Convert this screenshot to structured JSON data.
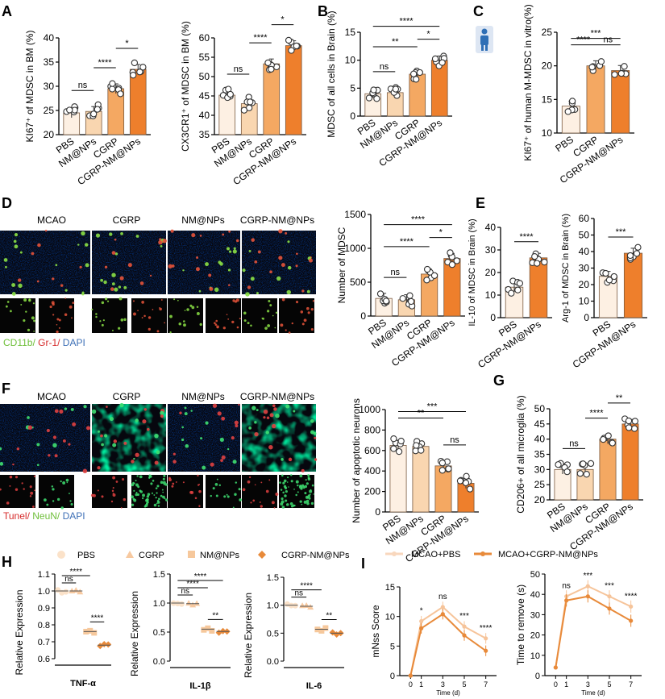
{
  "colors": {
    "pbs": "#fdf0e3",
    "nm": "#f9d6b0",
    "cgrp": "#f4a862",
    "cgrpnm": "#ee7f2c",
    "mcao_line": "#f6c49a",
    "cgrp_line": "#e88a3a"
  },
  "panels": {
    "A": "A",
    "B": "B",
    "C": "C",
    "D": "D",
    "E": "E",
    "F": "F",
    "G": "G",
    "H": "H",
    "I": "I"
  },
  "groups4": [
    "PBS",
    "NM@NPs",
    "CGRP",
    "CGRP-NM@NPs"
  ],
  "groups3": [
    "PBS",
    "CGRP",
    "CGRP-NM@NPs"
  ],
  "groups2": [
    "PBS",
    "CGRP-NM@NPs"
  ],
  "imageD": {
    "cols": [
      "MCAO",
      "CGRP",
      "NM@NPs",
      "CGRP-NM@NPs"
    ],
    "legend1": "CD11b/",
    "legend2": " Gr-1/",
    "legend3": " DAPI"
  },
  "imageF": {
    "cols": [
      "MCAO",
      "CGRP",
      "NM@NPs",
      "CGRP-NM@NPs"
    ],
    "legend1": "Tunel/",
    "legend2": " NeuN/",
    "legend3": " DAPI"
  },
  "chart_data": [
    {
      "id": "A1",
      "type": "bar",
      "ylabel": "KI67⁺ of MDSC in BM (%)",
      "ylim": [
        20,
        40
      ],
      "ticks": [
        20,
        25,
        30,
        35,
        40
      ],
      "categories": [
        "PBS",
        "NM@NPs",
        "CGRP",
        "CGRP-NM@NPs"
      ],
      "values": [
        24.5,
        24.8,
        29.5,
        33.5
      ],
      "sig": [
        {
          "a": 0,
          "b": 1,
          "t": "ns"
        },
        {
          "a": 1,
          "b": 2,
          "t": "****"
        },
        {
          "a": 2,
          "b": 3,
          "t": "*"
        }
      ]
    },
    {
      "id": "A2",
      "type": "bar",
      "ylabel": "CX3CR1⁺ of MDSC in BM (%)",
      "ylim": [
        35,
        60
      ],
      "ticks": [
        35,
        40,
        45,
        50,
        55,
        60
      ],
      "categories": [
        "PBS",
        "NM@NPs",
        "CGRP",
        "CGRP-NM@NPs"
      ],
      "values": [
        45.2,
        43.0,
        53.3,
        58.0
      ],
      "sig": [
        {
          "a": 0,
          "b": 1,
          "t": "ns"
        },
        {
          "a": 1,
          "b": 2,
          "t": "****"
        },
        {
          "a": 2,
          "b": 3,
          "t": "*"
        }
      ]
    },
    {
      "id": "B",
      "type": "bar",
      "ylabel": "MDSC of all cells in Brain (%)",
      "ylim": [
        0,
        15
      ],
      "ticks": [
        0,
        5,
        10,
        15
      ],
      "categories": [
        "PBS",
        "NM@NPs",
        "CGRP",
        "CGRP-NM@NPs"
      ],
      "values": [
        4.0,
        4.2,
        7.5,
        10.0
      ],
      "sig": [
        {
          "a": 0,
          "b": 3,
          "t": "****"
        },
        {
          "a": 0,
          "b": 2,
          "t": "**"
        },
        {
          "a": 0,
          "b": 1,
          "t": "ns"
        },
        {
          "a": 2,
          "b": 3,
          "t": "*"
        }
      ]
    },
    {
      "id": "C",
      "type": "bar",
      "ylabel": "KI67⁺ of human M-MDSC in vitro(%)",
      "ylim": [
        10,
        25
      ],
      "ticks": [
        10,
        15,
        20,
        25
      ],
      "categories": [
        "PBS",
        "CGRP",
        "CGRP-NM@NPs"
      ],
      "values": [
        14.0,
        20.0,
        19.3
      ],
      "sig": [
        {
          "a": 0,
          "b": 2,
          "t": "***"
        },
        {
          "a": 0,
          "b": 1,
          "t": "****"
        },
        {
          "a": 1,
          "b": 2,
          "t": "ns"
        }
      ]
    },
    {
      "id": "D",
      "type": "bar",
      "ylabel": "Number of MDSC",
      "ylim": [
        0,
        1500
      ],
      "ticks": [
        0,
        500,
        1000,
        1500
      ],
      "categories": [
        "PBS",
        "NM@NPs",
        "CGRP",
        "CGRP-NM@NPs"
      ],
      "values": [
        260,
        240,
        620,
        850
      ],
      "sig": [
        {
          "a": 0,
          "b": 3,
          "t": "****"
        },
        {
          "a": 2,
          "b": 3,
          "t": "*"
        },
        {
          "a": 0,
          "b": 2,
          "t": "****"
        },
        {
          "a": 0,
          "b": 1,
          "t": "ns"
        }
      ]
    },
    {
      "id": "E1",
      "type": "bar",
      "ylabel": "IL-10 of MDSC in Brain (%)",
      "ylim": [
        0,
        40
      ],
      "ticks": [
        0,
        10,
        20,
        30,
        40
      ],
      "categories": [
        "PBS",
        "CGRP-NM@NPs"
      ],
      "values": [
        13.5,
        26.5
      ],
      "sig": [
        {
          "a": 0,
          "b": 1,
          "t": "****"
        }
      ]
    },
    {
      "id": "E2",
      "type": "bar",
      "ylabel": "Arg-1 of MDSC in Brain (%)",
      "ylim": [
        0,
        60
      ],
      "ticks": [
        0,
        10,
        20,
        30,
        40,
        50,
        60
      ],
      "categories": [
        "PBS",
        "CGRP-NM@NPs"
      ],
      "values": [
        25.0,
        39.0
      ],
      "sig": [
        {
          "a": 0,
          "b": 1,
          "t": "***"
        }
      ]
    },
    {
      "id": "F",
      "type": "bar",
      "ylabel": "Number of apoptotic neurons",
      "ylim": [
        0,
        1000
      ],
      "ticks": [
        0,
        200,
        400,
        600,
        800,
        1000
      ],
      "categories": [
        "PBS",
        "NM@NPs",
        "CGRP",
        "CGRP-NM@NPs"
      ],
      "values": [
        650,
        640,
        450,
        280
      ],
      "sig": [
        {
          "a": 0,
          "b": 3,
          "t": "***"
        },
        {
          "a": 0,
          "b": 2,
          "t": "**"
        },
        {
          "a": 2,
          "b": 3,
          "t": "ns"
        }
      ]
    },
    {
      "id": "G",
      "type": "bar",
      "ylabel": "CD206+ of all microglia (%)",
      "ylim": [
        20,
        50
      ],
      "ticks": [
        20,
        25,
        30,
        35,
        40,
        45,
        50
      ],
      "categories": [
        "PBS",
        "NM@NPs",
        "CGRP",
        "CGRP-NM@NPs"
      ],
      "values": [
        30.0,
        30.0,
        40.0,
        45.0
      ],
      "sig": [
        {
          "a": 0,
          "b": 1,
          "t": "ns"
        },
        {
          "a": 1,
          "b": 2,
          "t": "****"
        },
        {
          "a": 2,
          "b": 3,
          "t": "**"
        }
      ]
    },
    {
      "id": "H1",
      "type": "scatter",
      "xlabel": "TNF-α",
      "ylabel": "Relative Expression",
      "ylim": [
        0.6,
        1.1
      ],
      "ticks": [
        0.6,
        0.7,
        0.8,
        0.9,
        1.0,
        1.1
      ],
      "tickLabels": [
        "0.6",
        "0.7",
        "0.8",
        "0.9",
        "1.0",
        "1.1"
      ],
      "values": [
        1.0,
        1.0,
        0.76,
        0.68
      ],
      "sig": [
        {
          "a": 0,
          "b": 2,
          "t": "****"
        },
        {
          "a": 0,
          "b": 1,
          "t": "ns"
        },
        {
          "a": 2,
          "b": 3,
          "t": "****"
        }
      ]
    },
    {
      "id": "H2",
      "type": "scatter",
      "xlabel": "IL-1β",
      "ylabel": "Relative Expression",
      "ylim": [
        0,
        1.5
      ],
      "ticks": [
        0,
        0.5,
        1.0,
        1.5
      ],
      "tickLabels": [
        "0.0",
        "0.5",
        "1.0",
        "1.5"
      ],
      "values": [
        1.0,
        0.99,
        0.55,
        0.51
      ],
      "sig": [
        {
          "a": 0,
          "b": 3,
          "t": "****"
        },
        {
          "a": 0,
          "b": 2,
          "t": "****"
        },
        {
          "a": 0,
          "b": 1,
          "t": "ns"
        },
        {
          "a": 2,
          "b": 3,
          "t": "**"
        }
      ]
    },
    {
      "id": "H3",
      "type": "scatter",
      "xlabel": "IL-6",
      "ylabel": "Relative Expression",
      "ylim": [
        0,
        1.5
      ],
      "ticks": [
        0,
        0.5,
        1.0,
        1.5
      ],
      "tickLabels": [
        "0.0",
        "0.5",
        "1.0",
        "1.5"
      ],
      "values": [
        1.0,
        0.98,
        0.57,
        0.5
      ],
      "sig": [
        {
          "a": 0,
          "b": 2,
          "t": "****"
        },
        {
          "a": 0,
          "b": 1,
          "t": "ns"
        },
        {
          "a": 2,
          "b": 3,
          "t": "**"
        }
      ]
    },
    {
      "id": "I1",
      "type": "line",
      "xlabel": "Time (d)",
      "ylabel": "mNss Score",
      "xlim": [
        -1,
        8
      ],
      "xticks": [
        0,
        1,
        3,
        5,
        7
      ],
      "ylim": [
        0,
        15
      ],
      "yticks": [
        0,
        5,
        10,
        15
      ],
      "series": [
        {
          "name": "MCAO+PBS",
          "x": [
            0,
            1,
            3,
            5,
            7
          ],
          "y": [
            0,
            9.2,
            11.6,
            8.3,
            6.3
          ]
        },
        {
          "name": "MCAO+CGRP-NM@NPs",
          "x": [
            0,
            1,
            3,
            5,
            7
          ],
          "y": [
            0,
            8.0,
            10.4,
            6.8,
            4.2
          ]
        }
      ],
      "sig": [
        {
          "x": 1,
          "t": "*"
        },
        {
          "x": 3,
          "t": "ns"
        },
        {
          "x": 5,
          "t": "***"
        },
        {
          "x": 7,
          "t": "****"
        }
      ]
    },
    {
      "id": "I2",
      "type": "line",
      "xlabel": "Time (d)",
      "ylabel": "Time to remove (s)",
      "xlim": [
        -1,
        8
      ],
      "xticks": [
        0,
        1,
        3,
        5,
        7
      ],
      "ylim": [
        0,
        50
      ],
      "yticks": [
        0,
        10,
        20,
        30,
        40,
        50
      ],
      "series": [
        {
          "name": "MCAO+PBS",
          "x": [
            0,
            1,
            3,
            5,
            7
          ],
          "y": [
            4,
            39,
            44,
            39,
            34
          ]
        },
        {
          "name": "MCAO+CGRP-NM@NPs",
          "x": [
            0,
            1,
            3,
            5,
            7
          ],
          "y": [
            4,
            37,
            39,
            33,
            27
          ]
        }
      ],
      "sig": [
        {
          "x": 1,
          "t": "ns"
        },
        {
          "x": 3,
          "t": "***"
        },
        {
          "x": 5,
          "t": "***"
        },
        {
          "x": 7,
          "t": "****"
        }
      ]
    }
  ]
}
